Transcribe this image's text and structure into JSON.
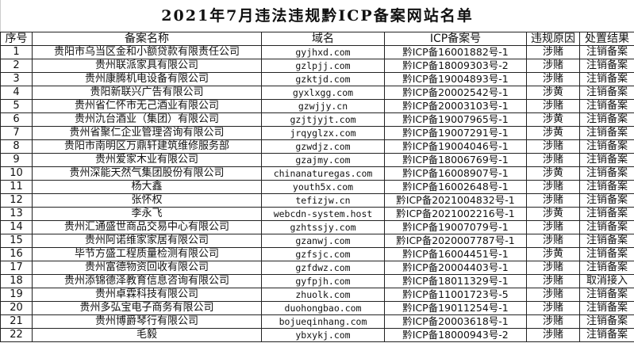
{
  "title": "2021年7月违法违规黔ICP备案网站名单",
  "headers": [
    "序号",
    "备案名称",
    "域名",
    "ICP备案号",
    "违规原因",
    "处置结果"
  ],
  "rows": [
    [
      "1",
      "贵阳市乌当区金和小额贷款有限责任公司",
      "gyjhxd.com",
      "黔ICP备16001882号-1",
      "涉赌",
      "注销备案"
    ],
    [
      "2",
      "贵州联派家具有限公司",
      "gzlpjj.com",
      "黔ICP备18009303号-2",
      "涉赌",
      "注销备案"
    ],
    [
      "3",
      "贵州康腾机电设备有限公司",
      "gzktjd.com",
      "黔ICP备19004893号-1",
      "涉赌",
      "注销备案"
    ],
    [
      "4",
      "贵阳新联兴广告有限公司",
      "gyxlxgg.com",
      "黔ICP备20002542号-1",
      "涉黄",
      "注销备案"
    ],
    [
      "5",
      "贵州省仁怀市无己酒业有限公司",
      "gzwjjy.cn",
      "黔ICP备20003103号-1",
      "涉赌",
      "注销备案"
    ],
    [
      "6",
      "贵州氿台酒业（集团）有限公司",
      "gzjtjyjt.com",
      "黔ICP备19007965号-1",
      "涉黄",
      "注销备案"
    ],
    [
      "7",
      "贵州省聚仁企业管理咨询有限公司",
      "jrqyglzx.com",
      "黔ICP备19007291号-1",
      "涉黄",
      "注销备案"
    ],
    [
      "8",
      "贵阳市南明区万鼎轩建筑维修服务部",
      "gzwdjz.com",
      "黔ICP备19004046号-1",
      "涉赌",
      "注销备案"
    ],
    [
      "9",
      "贵州爱家木业有限公司",
      "gzajmy.com",
      "黔ICP备18006769号-1",
      "涉赌",
      "注销备案"
    ],
    [
      "10",
      "贵州深能天然气集团股份有限公司",
      "chinanaturegas.com",
      "黔ICP备16008907号-1",
      "涉黄",
      "注销备案"
    ],
    [
      "11",
      "杨大鑫",
      "youth5x.com",
      "黔ICP备16002648号-1",
      "涉赌",
      "注销备案"
    ],
    [
      "12",
      "张怀权",
      "tefizjw.cn",
      "黔ICP备2021004832号-1",
      "涉赌",
      "注销备案"
    ],
    [
      "13",
      "李永飞",
      "webcdn-system.host",
      "黔ICP备2021002216号-1",
      "涉黄",
      "注销备案"
    ],
    [
      "14",
      "贵州汇通盛世商品交易中心有限公司",
      "gzhtssjy.com",
      "黔ICP备19007079号-1",
      "涉赌",
      "注销备案"
    ],
    [
      "15",
      "贵州阿诺维家家居有限公司",
      "gzanwj.com",
      "黔ICP备2020007787号-1",
      "涉赌",
      "注销备案"
    ],
    [
      "16",
      "毕节方盛工程质量检测有限公司",
      "gzfsjc.com",
      "黔ICP备16004451号-1",
      "涉黄",
      "注销备案"
    ],
    [
      "17",
      "贵州富德物资回收有限公司",
      "gzfdwz.com",
      "黔ICP备20004403号-1",
      "涉赌",
      "注销备案"
    ],
    [
      "18",
      "贵州添锦德泽教育信息咨询有限公司",
      "gyfpjh.com",
      "黔ICP备18011329号-1",
      "涉赌",
      "取消接入"
    ],
    [
      "19",
      "贵州卓霖科技有限公司",
      "zhuolk.com",
      "黔ICP备11001723号-5",
      "涉赌",
      "注销备案"
    ],
    [
      "20",
      "贵州多弘宝电子商务有限公司",
      "duohongbao.com",
      "黔ICP备19011254号-1",
      "涉赌",
      "注销备案"
    ],
    [
      "21",
      "贵州博爵琴行有限公司",
      "bojueqinhang.com",
      "黔ICP备20003618号-1",
      "涉赌",
      "注销备案"
    ],
    [
      "22",
      "毛毅",
      "ybxykj.com",
      "黔ICP备18000943号-2",
      "涉赌",
      "注销备案"
    ]
  ]
}
